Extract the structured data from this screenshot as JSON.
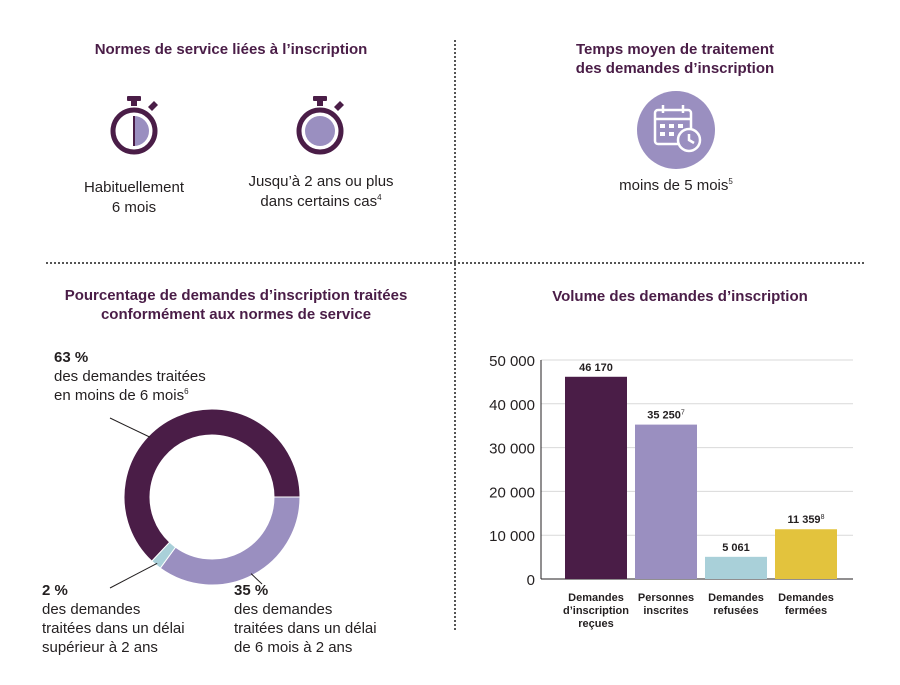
{
  "colors": {
    "dark_purple": "#4a1d47",
    "light_purple": "#9a8fc0",
    "light_blue": "#a9d0d9",
    "yellow": "#e3c33d",
    "grid": "#d9d9d9"
  },
  "panel1": {
    "title": "Normes de service liées à l’inscription",
    "item1": {
      "icon": "stopwatch-half-icon",
      "line1": "Habituellement",
      "line2": "6 mois"
    },
    "item2": {
      "icon": "stopwatch-full-icon",
      "line1": "Jusqu’à 2 ans ou plus",
      "line2": "dans certains cas",
      "sup": "4"
    }
  },
  "panel2": {
    "title_line1": "Temps moyen de traitement",
    "title_line2": "des demandes d’inscription",
    "icon": "calendar-clock-icon",
    "text": "moins de 5 mois",
    "sup": "5"
  },
  "panel3": {
    "title_line1": "Pourcentage de demandes d’inscription traitées",
    "title_line2": "conformément aux normes de service",
    "labels": {
      "a": {
        "pct": "63 %",
        "line1": "des demandes traitées",
        "line2": "en moins de 6 mois",
        "sup": "6"
      },
      "b": {
        "pct": "2 %",
        "line1": "des demandes",
        "line2": "traitées dans un délai",
        "line3": "supérieur à 2 ans"
      },
      "c": {
        "pct": "35 %",
        "line1": "des demandes",
        "line2": "traitées dans un délai",
        "line3": "de 6 mois à 2 ans"
      }
    }
  },
  "panel4": {
    "title": "Volume des demandes d’inscription"
  },
  "chart_data": [
    {
      "type": "pie",
      "donut": true,
      "title": "Pourcentage de demandes d’inscription traitées conformément aux normes de service",
      "slices": [
        {
          "label": "des demandes traitées en moins de 6 mois",
          "value": 63,
          "color": "#4a1d47"
        },
        {
          "label": "des demandes traitées dans un délai de 6 mois à 2 ans",
          "value": 35,
          "color": "#9a8fc0"
        },
        {
          "label": "des demandes traitées dans un délai supérieur à 2 ans",
          "value": 2,
          "color": "#a9d0d9"
        }
      ]
    },
    {
      "type": "bar",
      "title": "Volume des demandes d’inscription",
      "categories": [
        [
          "Demandes",
          "d’inscription",
          "reçues"
        ],
        [
          "Personnes",
          "inscrites"
        ],
        [
          "Demandes",
          "refusées"
        ],
        [
          "Demandes",
          "fermées"
        ]
      ],
      "values": [
        46170,
        35250,
        5061,
        11359
      ],
      "value_labels": [
        "46 170",
        "35 250",
        "5 061",
        "11 359"
      ],
      "value_sups": [
        "",
        "7",
        "",
        "8"
      ],
      "colors": [
        "#4a1d47",
        "#9a8fc0",
        "#a9d0d9",
        "#e3c33d"
      ],
      "ylim": [
        0,
        50000
      ],
      "yticks": [
        0,
        10000,
        20000,
        30000,
        40000,
        50000
      ],
      "ytick_labels": [
        "0",
        "10 000",
        "20 000",
        "30 000",
        "40 000",
        "50 000"
      ],
      "grid": true
    }
  ]
}
